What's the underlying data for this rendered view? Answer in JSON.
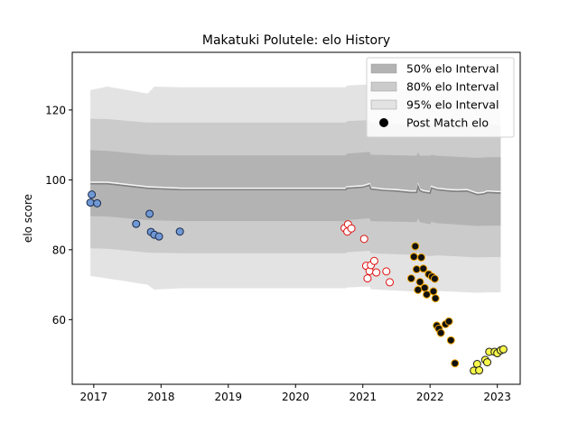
{
  "chart_data": {
    "type": "line",
    "title": "Makatuki Polutele: elo History",
    "xlabel": "",
    "ylabel": "elo score",
    "xlim": [
      2016.68,
      2023.34
    ],
    "ylim": [
      41.5,
      136.5
    ],
    "xticks": [
      2017,
      2018,
      2019,
      2020,
      2021,
      2022,
      2023
    ],
    "yticks": [
      60,
      80,
      100,
      120
    ],
    "grid": false,
    "legend_position": "top-right",
    "legend": [
      {
        "label": "50% elo Interval",
        "kind": "band",
        "color": "#b3b3b3"
      },
      {
        "label": "80% elo Interval",
        "kind": "band",
        "color": "#cbcbcb"
      },
      {
        "label": "95% elo Interval",
        "kind": "band",
        "color": "#e3e3e3"
      },
      {
        "label": "Post Match elo",
        "kind": "marker",
        "color": "#000000"
      }
    ],
    "rating_line": {
      "x": [
        2016.95,
        2017.2,
        2017.8,
        2018.3,
        2019.0,
        2020.0,
        2020.75,
        2020.76,
        2021.0,
        2021.1,
        2021.12,
        2021.3,
        2021.5,
        2021.7,
        2021.8,
        2021.82,
        2021.85,
        2021.9,
        2022.0,
        2022.02,
        2022.1,
        2022.3,
        2022.4,
        2022.55,
        2022.7,
        2022.8,
        2022.85,
        2023.05
      ],
      "y": [
        98.9,
        98.9,
        97.6,
        97.2,
        97.2,
        97.2,
        97.2,
        97.6,
        97.9,
        98.5,
        97.4,
        97.0,
        96.8,
        96.4,
        96.4,
        98.2,
        96.9,
        96.5,
        96.2,
        97.7,
        97.2,
        96.8,
        96.7,
        96.8,
        95.8,
        96.0,
        96.4,
        96.2
      ],
      "color": "#808080"
    },
    "band_50": {
      "x": [
        2016.95,
        2017.2,
        2017.8,
        2018.3,
        2020.75,
        2020.76,
        2021.1,
        2021.12,
        2021.8,
        2021.82,
        2021.85,
        2022.0,
        2022.02,
        2022.1,
        2022.7,
        2022.85,
        2023.05
      ],
      "upper": [
        108.5,
        108.3,
        107.2,
        107.0,
        107.0,
        107.5,
        108.0,
        107.2,
        106.9,
        108.0,
        106.9,
        106.9,
        107.2,
        106.9,
        106.3,
        106.5,
        106.5
      ],
      "lower": [
        89.6,
        89.5,
        88.5,
        88.2,
        88.2,
        88.5,
        89.0,
        88.2,
        87.9,
        89.0,
        87.9,
        87.3,
        88.0,
        87.6,
        86.8,
        86.9,
        86.9
      ]
    },
    "band_80": {
      "x": [
        2016.95,
        2017.2,
        2017.8,
        2018.3,
        2020.75,
        2020.76,
        2021.1,
        2021.12,
        2021.8,
        2021.82,
        2021.85,
        2022.0,
        2022.1,
        2022.7,
        2022.85,
        2023.05
      ],
      "upper": [
        117.5,
        117.4,
        116.4,
        116.4,
        116.4,
        116.8,
        117.1,
        116.2,
        115.8,
        116.8,
        115.8,
        116.0,
        116.0,
        115.5,
        115.8,
        115.7
      ],
      "lower": [
        80.4,
        80.3,
        79.2,
        79.0,
        79.0,
        79.3,
        79.7,
        79.0,
        78.5,
        79.5,
        78.5,
        78.2,
        78.4,
        77.8,
        77.9,
        77.9
      ]
    },
    "band_95": {
      "x": [
        2016.95,
        2017.2,
        2017.8,
        2017.9,
        2018.3,
        2020.75,
        2020.76,
        2021.1,
        2021.12,
        2021.8,
        2021.82,
        2021.85,
        2022.0,
        2022.1,
        2022.7,
        2022.85,
        2023.05
      ],
      "upper": [
        125.7,
        126.7,
        124.7,
        126.7,
        126.5,
        126.5,
        127.0,
        127.3,
        126.3,
        125.9,
        127.0,
        126.0,
        126.2,
        126.2,
        125.7,
        126.0,
        126.0
      ],
      "lower": [
        72.5,
        71.8,
        70.0,
        68.6,
        69.0,
        69.0,
        69.2,
        69.5,
        68.7,
        68.0,
        69.0,
        68.3,
        68.0,
        68.2,
        67.7,
        67.8,
        67.8
      ]
    },
    "series": [
      {
        "fill": "#6f98d5",
        "stroke": "#1a2a4a",
        "points": [
          [
            2016.95,
            93.5
          ],
          [
            2016.97,
            95.8
          ],
          [
            2017.05,
            93.3
          ],
          [
            2017.63,
            87.4
          ],
          [
            2017.83,
            90.3
          ],
          [
            2017.85,
            85.1
          ],
          [
            2017.9,
            84.3
          ],
          [
            2017.97,
            83.8
          ],
          [
            2018.28,
            85.2
          ]
        ]
      },
      {
        "fill": "#ffffff",
        "stroke": "#e01010",
        "points": [
          [
            2020.73,
            86.2
          ],
          [
            2020.77,
            85.2
          ],
          [
            2020.78,
            87.3
          ],
          [
            2020.83,
            86.1
          ],
          [
            2021.02,
            83.1
          ],
          [
            2021.05,
            75.4
          ],
          [
            2021.07,
            71.8
          ],
          [
            2021.1,
            73.9
          ],
          [
            2021.12,
            75.6
          ],
          [
            2021.17,
            76.8
          ],
          [
            2021.2,
            73.5
          ],
          [
            2021.35,
            73.8
          ],
          [
            2021.4,
            70.7
          ]
        ]
      },
      {
        "fill": "#111111",
        "stroke": "#f0a500",
        "points": [
          [
            2021.72,
            71.8
          ],
          [
            2021.76,
            78.0
          ],
          [
            2021.78,
            81.0
          ],
          [
            2021.8,
            74.4
          ],
          [
            2021.82,
            68.5
          ],
          [
            2021.85,
            70.8
          ],
          [
            2021.87,
            77.8
          ],
          [
            2021.9,
            74.6
          ],
          [
            2021.92,
            69.1
          ],
          [
            2021.95,
            67.2
          ],
          [
            2021.98,
            73.0
          ],
          [
            2022.03,
            72.3
          ],
          [
            2022.05,
            68.1
          ],
          [
            2022.07,
            71.7
          ],
          [
            2022.08,
            66.1
          ],
          [
            2022.1,
            58.3
          ],
          [
            2022.13,
            57.4
          ],
          [
            2022.16,
            56.2
          ],
          [
            2022.23,
            58.7
          ],
          [
            2022.28,
            59.5
          ],
          [
            2022.31,
            54.1
          ],
          [
            2022.37,
            47.5
          ]
        ]
      },
      {
        "fill": "#f7f74a",
        "stroke": "#1a1a1a",
        "points": [
          [
            2022.65,
            45.4
          ],
          [
            2022.7,
            47.3
          ],
          [
            2022.73,
            45.5
          ],
          [
            2022.82,
            48.5
          ],
          [
            2022.85,
            47.8
          ],
          [
            2022.88,
            50.8
          ],
          [
            2022.96,
            50.8
          ],
          [
            2023.0,
            50.4
          ],
          [
            2023.05,
            51.2
          ],
          [
            2023.09,
            51.5
          ]
        ]
      }
    ]
  }
}
